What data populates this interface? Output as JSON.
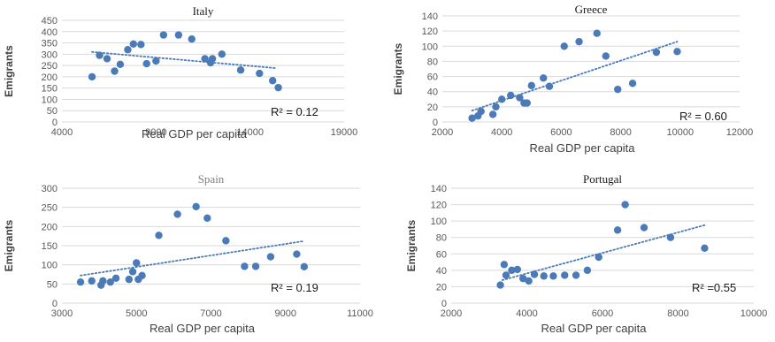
{
  "style": {
    "marker_color": "#4a7ab7",
    "trend_color": "#4a7ab7",
    "grid_color": "#d9d9d9",
    "title_color_serif": "#1a1a1a",
    "title_color_spain": "#808080"
  },
  "chart_data": [
    {
      "type": "scatter",
      "title": "Italy",
      "xlabel": "Real GDP per capita",
      "ylabel": "Emigrants",
      "xlim": [
        4000,
        19000
      ],
      "ylim": [
        0,
        450
      ],
      "xticks": [
        "4000",
        "9000",
        "14000",
        "19000"
      ],
      "yticks": [
        "0",
        "50",
        "100",
        "150",
        "200",
        "250",
        "300",
        "350",
        "400",
        "450"
      ],
      "x": [
        5600,
        6000,
        6400,
        6800,
        7100,
        7500,
        7800,
        8200,
        8500,
        9000,
        9400,
        10200,
        10900,
        11600,
        11900,
        12000,
        12500,
        13500,
        14500,
        15200,
        15500
      ],
      "y": [
        200,
        295,
        280,
        225,
        255,
        320,
        345,
        343,
        258,
        270,
        385,
        385,
        367,
        280,
        262,
        280,
        300,
        230,
        215,
        183,
        152
      ],
      "trend": [
        [
          5600,
          310
        ],
        [
          15400,
          238
        ]
      ],
      "r2_label": "R² = 0.12"
    },
    {
      "type": "scatter",
      "title": "Greece",
      "xlabel": "Real GDP per capita",
      "ylabel": "Emigrants",
      "xlim": [
        2000,
        12000
      ],
      "ylim": [
        0,
        140
      ],
      "xticks": [
        "2000",
        "4000",
        "6000",
        "8000",
        "10000",
        "12000"
      ],
      "yticks": [
        "0",
        "20",
        "40",
        "60",
        "80",
        "100",
        "120",
        "140"
      ],
      "x": [
        3000,
        3200,
        3300,
        3700,
        3800,
        4000,
        4300,
        4600,
        4750,
        4850,
        5000,
        5400,
        5600,
        6100,
        6600,
        7200,
        7500,
        7900,
        8400,
        9200,
        9900
      ],
      "y": [
        5,
        8,
        14,
        10,
        20,
        30,
        35,
        32,
        25,
        25,
        48,
        58,
        47,
        100,
        106,
        117,
        87,
        43,
        51,
        92,
        93
      ],
      "trend": [
        [
          3000,
          15
        ],
        [
          9900,
          106
        ]
      ],
      "r2_label": "R² = 0.60"
    },
    {
      "type": "scatter",
      "title": "Spain",
      "xlabel": "Real GDP per capita",
      "ylabel": "Emigrants",
      "xlim": [
        3000,
        11000
      ],
      "ylim": [
        0,
        300
      ],
      "xticks": [
        "3000",
        "5000",
        "7000",
        "9000",
        "11000"
      ],
      "yticks": [
        "0",
        "50",
        "100",
        "150",
        "200",
        "250",
        "300"
      ],
      "x": [
        3500,
        3800,
        4050,
        4100,
        4300,
        4450,
        4800,
        4900,
        5000,
        5050,
        5150,
        5600,
        6100,
        6600,
        6900,
        7400,
        7900,
        8200,
        8600,
        9300,
        9500
      ],
      "y": [
        55,
        58,
        47,
        58,
        55,
        65,
        62,
        82,
        105,
        62,
        72,
        177,
        232,
        252,
        222,
        163,
        96,
        96,
        121,
        128,
        95
      ],
      "trend": [
        [
          3500,
          72
        ],
        [
          9500,
          162
        ]
      ],
      "r2_label": "R² = 0.19"
    },
    {
      "type": "scatter",
      "title": "Portugal",
      "xlabel": "Real GDP per capita",
      "ylabel": "Emigrants",
      "xlim": [
        2000,
        10000
      ],
      "ylim": [
        0,
        140
      ],
      "xticks": [
        "2000",
        "4000",
        "6000",
        "8000",
        "10000"
      ],
      "yticks": [
        "0",
        "20",
        "40",
        "60",
        "80",
        "100",
        "120",
        "140"
      ],
      "x": [
        3300,
        3400,
        3450,
        3600,
        3750,
        3900,
        4050,
        4200,
        4450,
        4700,
        5000,
        5300,
        5600,
        5900,
        6400,
        6600,
        7100,
        7800,
        8700
      ],
      "y": [
        22,
        47,
        34,
        40,
        41,
        30,
        27,
        35,
        33,
        33,
        34,
        34,
        40,
        56,
        89,
        120,
        92,
        80,
        67
      ],
      "trend": [
        [
          3350,
          28
        ],
        [
          8700,
          95
        ]
      ],
      "r2_label": "R² =0.55"
    }
  ]
}
